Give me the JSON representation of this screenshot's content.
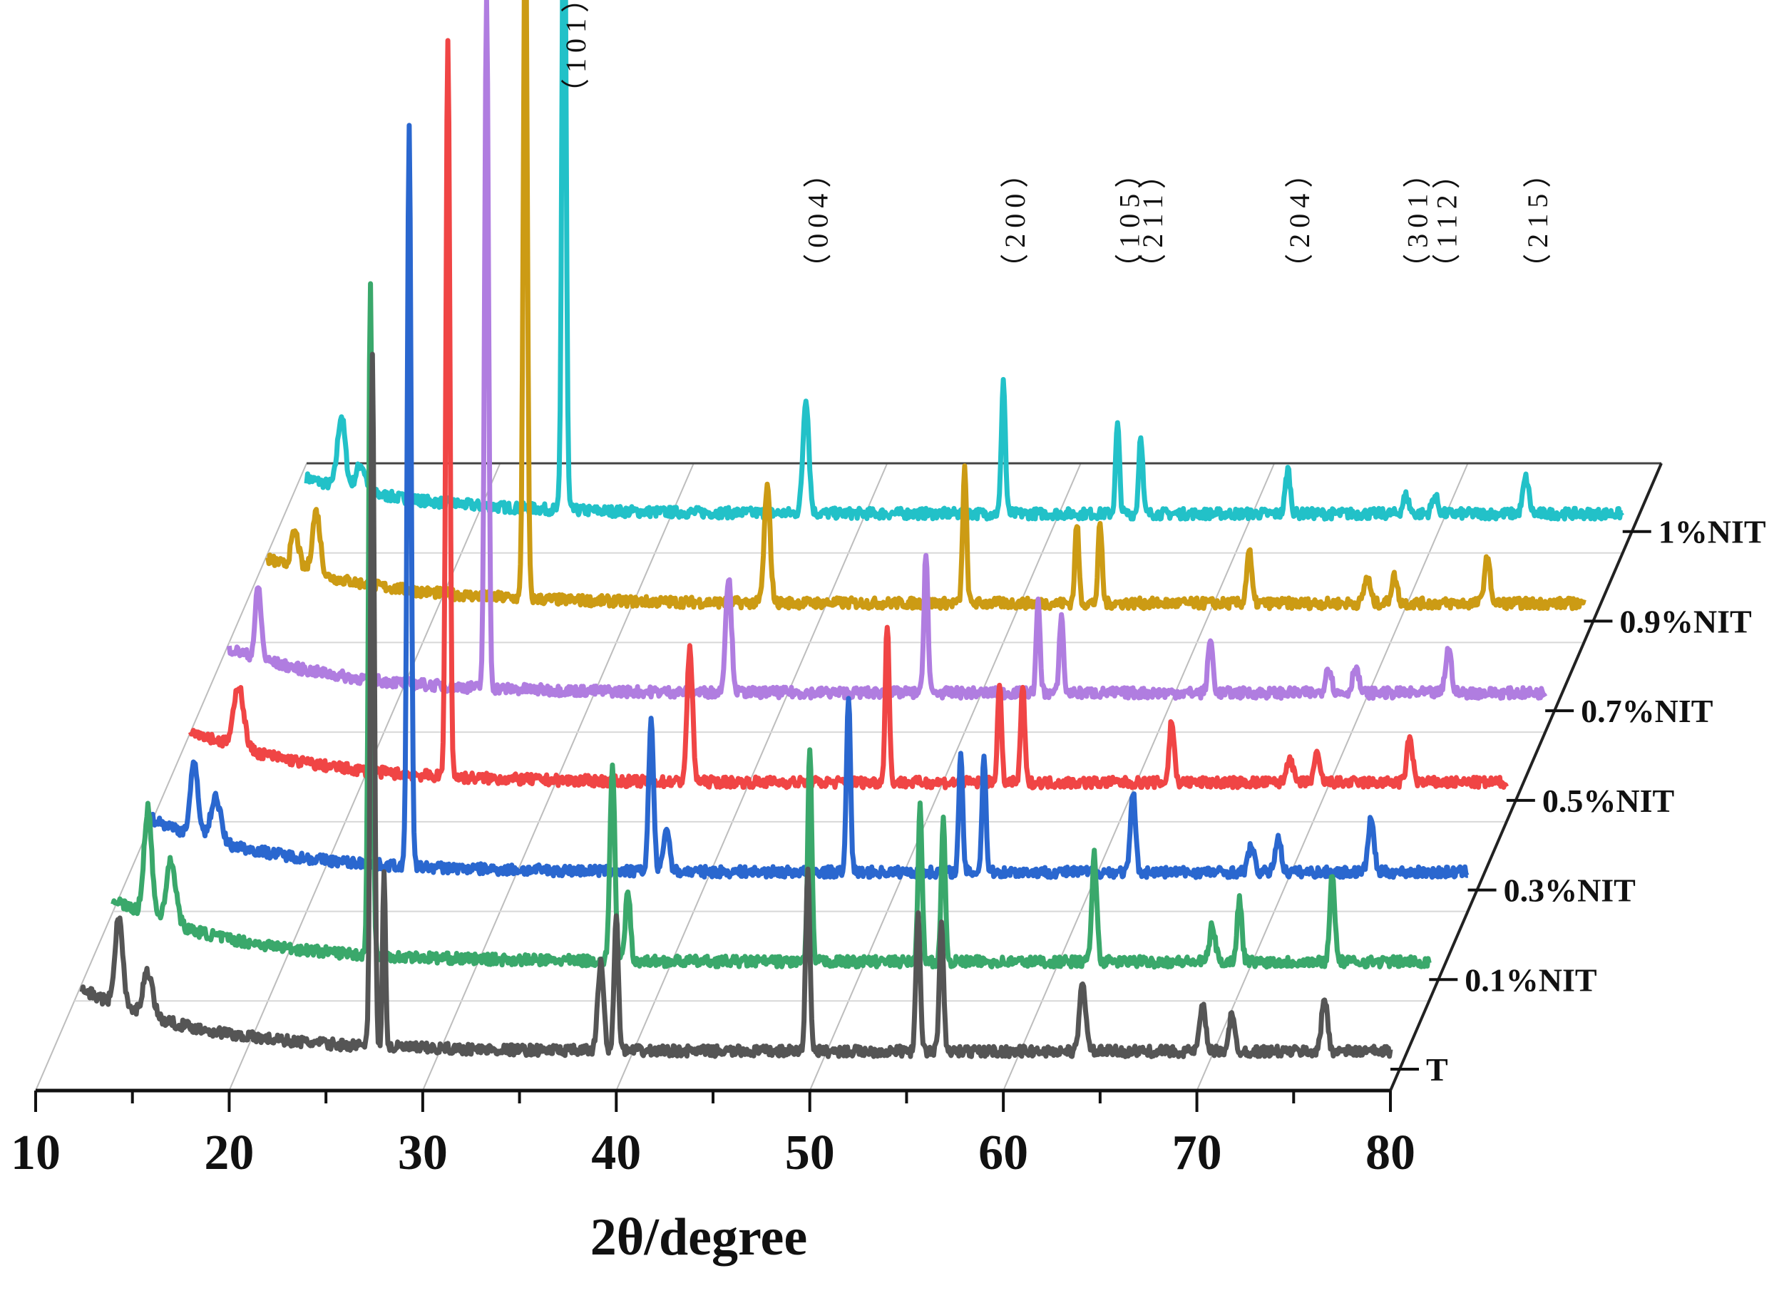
{
  "chart_data": {
    "type": "line",
    "style": "3d-waterfall",
    "xlabel": "2θ/degree",
    "xlim": [
      10,
      80
    ],
    "xticks": [
      "10",
      "20",
      "30",
      "40",
      "50",
      "60",
      "70",
      "80"
    ],
    "grid": true,
    "miller_indices": [
      {
        "label": "（101）",
        "two_theta": 25.3
      },
      {
        "label": "（004）",
        "two_theta": 37.8
      },
      {
        "label": "（200）",
        "two_theta": 48.0
      },
      {
        "label": "（105）",
        "two_theta": 53.9
      },
      {
        "label": "（211）",
        "two_theta": 55.1
      },
      {
        "label": "（204）",
        "two_theta": 62.7
      },
      {
        "label": "（301）",
        "two_theta": 68.8
      },
      {
        "label": "（112）",
        "two_theta": 70.3
      },
      {
        "label": "（215）",
        "two_theta": 75.0
      }
    ],
    "series": [
      {
        "name": "T",
        "color": "#555555",
        "start": 12.4,
        "baseline": 0.07,
        "peaks": [
          [
            14.3,
            0.1,
            0.4
          ],
          [
            15.8,
            0.05,
            0.5
          ],
          [
            27.4,
            0.78,
            0.2
          ],
          [
            28.0,
            0.2,
            0.15
          ],
          [
            39.2,
            0.1,
            0.3
          ],
          [
            40.0,
            0.15,
            0.22
          ],
          [
            49.9,
            0.2,
            0.22
          ],
          [
            55.6,
            0.15,
            0.22
          ],
          [
            56.8,
            0.14,
            0.22
          ],
          [
            64.1,
            0.08,
            0.3
          ],
          [
            70.3,
            0.05,
            0.3
          ],
          [
            71.8,
            0.04,
            0.3
          ],
          [
            76.6,
            0.06,
            0.3
          ]
        ]
      },
      {
        "name": "0.1%NIT",
        "color": "#3aa86b",
        "start": 12.0,
        "baseline": 0.07,
        "peaks": [
          [
            13.8,
            0.12,
            0.4
          ],
          [
            15.0,
            0.07,
            0.5
          ],
          [
            25.3,
            0.75,
            0.2
          ],
          [
            37.8,
            0.22,
            0.25
          ],
          [
            38.6,
            0.08,
            0.25
          ],
          [
            48.0,
            0.24,
            0.2
          ],
          [
            53.7,
            0.18,
            0.2
          ],
          [
            54.9,
            0.16,
            0.2
          ],
          [
            62.7,
            0.12,
            0.25
          ],
          [
            68.8,
            0.04,
            0.3
          ],
          [
            70.2,
            0.07,
            0.25
          ],
          [
            75.0,
            0.1,
            0.25
          ]
        ]
      },
      {
        "name": "0.3%NIT",
        "color": "#2a67cf",
        "start": 12.0,
        "baseline": 0.06,
        "peaks": [
          [
            14.2,
            0.08,
            0.4
          ],
          [
            15.3,
            0.05,
            0.5
          ],
          [
            25.3,
            0.83,
            0.2
          ],
          [
            37.8,
            0.17,
            0.25
          ],
          [
            38.6,
            0.05,
            0.3
          ],
          [
            48.0,
            0.2,
            0.2
          ],
          [
            53.8,
            0.13,
            0.2
          ],
          [
            55.0,
            0.13,
            0.2
          ],
          [
            62.7,
            0.09,
            0.25
          ],
          [
            68.8,
            0.03,
            0.3
          ],
          [
            70.2,
            0.04,
            0.3
          ],
          [
            75.0,
            0.06,
            0.3
          ]
        ]
      },
      {
        "name": "0.5%NIT",
        "color": "#f04545",
        "start": 12.0,
        "baseline": 0.06,
        "peaks": [
          [
            14.5,
            0.07,
            0.5
          ],
          [
            25.3,
            0.83,
            0.2
          ],
          [
            37.8,
            0.15,
            0.28
          ],
          [
            48.0,
            0.18,
            0.2
          ],
          [
            53.8,
            0.11,
            0.2
          ],
          [
            55.0,
            0.11,
            0.2
          ],
          [
            62.7,
            0.07,
            0.25
          ],
          [
            68.8,
            0.03,
            0.3
          ],
          [
            70.2,
            0.03,
            0.3
          ],
          [
            75.0,
            0.05,
            0.3
          ]
        ]
      },
      {
        "name": "0.7%NIT",
        "color": "#b07de0",
        "start": 12.0,
        "baseline": 0.05,
        "peaks": [
          [
            13.5,
            0.08,
            0.3
          ],
          [
            25.3,
            0.77,
            0.2
          ],
          [
            37.8,
            0.13,
            0.3
          ],
          [
            48.0,
            0.16,
            0.2
          ],
          [
            53.8,
            0.1,
            0.2
          ],
          [
            55.0,
            0.09,
            0.2
          ],
          [
            62.7,
            0.06,
            0.25
          ],
          [
            68.8,
            0.03,
            0.3
          ],
          [
            70.2,
            0.03,
            0.3
          ],
          [
            75.0,
            0.05,
            0.3
          ]
        ]
      },
      {
        "name": "0.9%NIT",
        "color": "#cc9b14",
        "start": 12.0,
        "baseline": 0.05,
        "peaks": [
          [
            13.4,
            0.04,
            0.4
          ],
          [
            14.5,
            0.07,
            0.4
          ],
          [
            25.3,
            0.79,
            0.2
          ],
          [
            37.8,
            0.13,
            0.3
          ],
          [
            48.0,
            0.15,
            0.2
          ],
          [
            53.8,
            0.09,
            0.2
          ],
          [
            55.0,
            0.09,
            0.2
          ],
          [
            62.7,
            0.06,
            0.25
          ],
          [
            68.8,
            0.03,
            0.3
          ],
          [
            70.2,
            0.03,
            0.3
          ],
          [
            75.0,
            0.05,
            0.3
          ]
        ]
      },
      {
        "name": "1%NIT",
        "color": "#22c1c8",
        "start": 12.0,
        "baseline": 0.04,
        "peaks": [
          [
            13.8,
            0.08,
            0.4
          ],
          [
            14.8,
            0.03,
            0.5
          ],
          [
            25.3,
            0.81,
            0.2
          ],
          [
            37.8,
            0.13,
            0.3
          ],
          [
            48.0,
            0.15,
            0.2
          ],
          [
            53.9,
            0.1,
            0.2
          ],
          [
            55.1,
            0.09,
            0.2
          ],
          [
            62.7,
            0.05,
            0.25
          ],
          [
            68.8,
            0.02,
            0.3
          ],
          [
            70.3,
            0.02,
            0.3
          ],
          [
            75.0,
            0.04,
            0.3
          ]
        ]
      }
    ]
  }
}
